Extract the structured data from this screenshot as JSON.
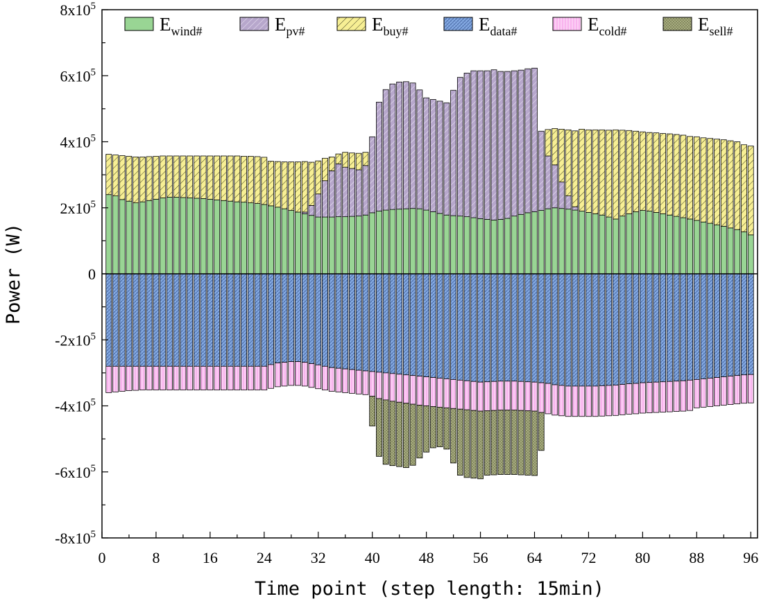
{
  "chart_data": {
    "type": "bar",
    "stacked": true,
    "xlabel": "Time point (step length: 15min)",
    "ylabel": "Power (W)",
    "xlim": [
      0,
      97
    ],
    "ylim": [
      -800000,
      800000
    ],
    "x_ticks": [
      {
        "value": 0,
        "label": "0"
      },
      {
        "value": 8,
        "label": "8"
      },
      {
        "value": 16,
        "label": "16"
      },
      {
        "value": 24,
        "label": "24"
      },
      {
        "value": 32,
        "label": "32"
      },
      {
        "value": 40,
        "label": "40"
      },
      {
        "value": 48,
        "label": "48"
      },
      {
        "value": 56,
        "label": "56"
      },
      {
        "value": 64,
        "label": "64"
      },
      {
        "value": 72,
        "label": "72"
      },
      {
        "value": 80,
        "label": "80"
      },
      {
        "value": 88,
        "label": "88"
      },
      {
        "value": 96,
        "label": "96"
      }
    ],
    "y_ticks": [
      {
        "value": 800000,
        "base": "8x10",
        "exp": "5"
      },
      {
        "value": 600000,
        "base": "6x10",
        "exp": "5"
      },
      {
        "value": 400000,
        "base": "4x10",
        "exp": "5"
      },
      {
        "value": 200000,
        "base": "2x10",
        "exp": "5"
      },
      {
        "value": 0,
        "base": "0",
        "exp": ""
      },
      {
        "value": -200000,
        "base": "-2x10",
        "exp": "5"
      },
      {
        "value": -400000,
        "base": "-4x10",
        "exp": "5"
      },
      {
        "value": -600000,
        "base": "-6x10",
        "exp": "5"
      },
      {
        "value": -800000,
        "base": "-8x10",
        "exp": "5"
      }
    ],
    "legend": {
      "position": "top",
      "entries": [
        {
          "key": "wind",
          "base": "E",
          "sub": "wind#"
        },
        {
          "key": "pv",
          "base": "E",
          "sub": "pv#"
        },
        {
          "key": "buy",
          "base": "E",
          "sub": "buy#"
        },
        {
          "key": "data",
          "base": "E",
          "sub": "data#"
        },
        {
          "key": "cold",
          "base": "E",
          "sub": "cold#"
        },
        {
          "key": "sell",
          "base": "E",
          "sub": "sell#"
        }
      ]
    },
    "colors": {
      "wind": "#99d594",
      "pv": "#b7a7cc",
      "buy": "#f7ef94",
      "data": "#88aee6",
      "cold": "#f9b3ee",
      "sell": "#a8ad80"
    },
    "x": [
      1,
      2,
      3,
      4,
      5,
      6,
      7,
      8,
      9,
      10,
      11,
      12,
      13,
      14,
      15,
      16,
      17,
      18,
      19,
      20,
      21,
      22,
      23,
      24,
      25,
      26,
      27,
      28,
      29,
      30,
      31,
      32,
      33,
      34,
      35,
      36,
      37,
      38,
      39,
      40,
      41,
      42,
      43,
      44,
      45,
      46,
      47,
      48,
      49,
      50,
      51,
      52,
      53,
      54,
      55,
      56,
      57,
      58,
      59,
      60,
      61,
      62,
      63,
      64,
      65,
      66,
      67,
      68,
      69,
      70,
      71,
      72,
      73,
      74,
      75,
      76,
      77,
      78,
      79,
      80,
      81,
      82,
      83,
      84,
      85,
      86,
      87,
      88,
      89,
      90,
      91,
      92,
      93,
      94,
      95,
      96
    ],
    "series": [
      {
        "name": "wind",
        "values": [
          240000,
          236000,
          225000,
          220000,
          215000,
          218000,
          222000,
          226000,
          230000,
          232000,
          232000,
          231000,
          230000,
          229000,
          228000,
          226000,
          224000,
          222000,
          220000,
          218000,
          217000,
          215000,
          213000,
          210000,
          206000,
          202000,
          197000,
          192000,
          187000,
          182000,
          177000,
          172000,
          172000,
          172000,
          173000,
          173000,
          174000,
          175000,
          178000,
          185000,
          190000,
          193000,
          195000,
          196000,
          197000,
          198000,
          197000,
          193000,
          188000,
          183000,
          178000,
          176000,
          175000,
          173000,
          170000,
          167000,
          165000,
          163000,
          165000,
          168000,
          175000,
          180000,
          185000,
          188000,
          192000,
          197000,
          200000,
          198000,
          196000,
          193000,
          190000,
          186000,
          182000,
          178000,
          172000,
          166000,
          175000,
          182000,
          188000,
          192000,
          190000,
          186000,
          182000,
          178000,
          174000,
          170000,
          166000,
          162000,
          157000,
          153000,
          148000,
          144000,
          139000,
          134000,
          127000,
          118000
        ]
      },
      {
        "name": "pv",
        "values": [
          0,
          0,
          0,
          0,
          0,
          0,
          0,
          0,
          0,
          0,
          0,
          0,
          0,
          0,
          0,
          0,
          0,
          0,
          0,
          0,
          0,
          0,
          0,
          0,
          0,
          0,
          0,
          0,
          0,
          5000,
          30000,
          70000,
          110000,
          140000,
          160000,
          150000,
          145000,
          140000,
          150000,
          230000,
          330000,
          365000,
          380000,
          385000,
          385000,
          380000,
          360000,
          340000,
          340000,
          340000,
          340000,
          380000,
          420000,
          435000,
          445000,
          448000,
          450000,
          455000,
          448000,
          445000,
          440000,
          437000,
          436000,
          435000,
          240000,
          160000,
          130000,
          80000,
          40000,
          10000,
          0,
          0,
          0,
          0,
          0,
          0,
          0,
          0,
          0,
          0,
          0,
          0,
          0,
          0,
          0,
          0,
          0,
          0,
          0,
          0,
          0,
          0,
          0,
          0,
          0,
          0
        ]
      },
      {
        "name": "buy",
        "values": [
          122000,
          124000,
          133000,
          136000,
          139000,
          136000,
          133000,
          130000,
          127000,
          125000,
          125000,
          126000,
          127000,
          128000,
          129000,
          131000,
          133000,
          135000,
          137000,
          139000,
          139000,
          141000,
          142000,
          143000,
          135000,
          138000,
          142000,
          147000,
          152000,
          153000,
          131000,
          100000,
          68000,
          42000,
          30000,
          45000,
          47000,
          50000,
          40000,
          0,
          0,
          0,
          0,
          0,
          0,
          0,
          0,
          0,
          0,
          0,
          0,
          0,
          0,
          0,
          0,
          0,
          0,
          0,
          0,
          0,
          0,
          0,
          0,
          0,
          0,
          80000,
          110000,
          160000,
          200000,
          230000,
          248000,
          250000,
          254000,
          258000,
          263000,
          270000,
          260000,
          252000,
          244000,
          238000,
          238000,
          241000,
          243000,
          246000,
          248000,
          250000,
          250000,
          253000,
          255000,
          257000,
          260000,
          262000,
          264000,
          266000,
          264000,
          269000
        ]
      },
      {
        "name": "data",
        "values": [
          -280000,
          -280000,
          -280000,
          -280000,
          -280000,
          -280000,
          -280000,
          -280000,
          -280000,
          -280000,
          -280000,
          -280000,
          -280000,
          -280000,
          -280000,
          -280000,
          -280000,
          -280000,
          -280000,
          -280000,
          -280000,
          -280000,
          -280000,
          -280000,
          -275000,
          -270000,
          -268000,
          -266000,
          -266000,
          -268000,
          -272000,
          -276000,
          -280000,
          -284000,
          -286000,
          -288000,
          -290000,
          -292000,
          -294000,
          -296000,
          -298000,
          -300000,
          -302000,
          -304000,
          -306000,
          -308000,
          -310000,
          -312000,
          -314000,
          -316000,
          -318000,
          -320000,
          -322000,
          -324000,
          -326000,
          -328000,
          -327000,
          -326000,
          -325000,
          -325000,
          -325000,
          -326000,
          -327000,
          -328000,
          -330000,
          -332000,
          -336000,
          -338000,
          -340000,
          -340000,
          -340000,
          -340000,
          -340000,
          -339000,
          -338000,
          -337000,
          -335000,
          -333000,
          -332000,
          -330000,
          -329000,
          -328000,
          -327000,
          -326000,
          -325000,
          -324000,
          -322000,
          -320000,
          -318000,
          -316000,
          -314000,
          -312000,
          -310000,
          -308000,
          -306000,
          -305000
        ]
      },
      {
        "name": "cold",
        "values": [
          -80000,
          -78000,
          -76000,
          -74000,
          -73000,
          -72000,
          -72000,
          -72000,
          -72000,
          -72000,
          -72000,
          -72000,
          -72000,
          -72000,
          -72000,
          -72000,
          -72000,
          -72000,
          -72000,
          -72000,
          -72000,
          -72000,
          -72000,
          -72000,
          -72000,
          -72000,
          -72000,
          -72000,
          -72000,
          -72000,
          -72000,
          -72000,
          -72000,
          -72000,
          -72000,
          -72000,
          -72000,
          -72000,
          -72000,
          -75000,
          -80000,
          -82000,
          -84000,
          -85000,
          -86000,
          -87000,
          -88000,
          -88000,
          -88000,
          -88000,
          -88000,
          -88000,
          -88000,
          -88000,
          -88000,
          -88000,
          -88000,
          -88000,
          -88000,
          -88000,
          -88000,
          -88000,
          -88000,
          -88000,
          -90000,
          -92000,
          -92000,
          -92000,
          -92000,
          -92000,
          -92000,
          -92000,
          -92000,
          -92000,
          -92000,
          -92000,
          -92000,
          -92000,
          -92000,
          -92000,
          -92000,
          -92000,
          -92000,
          -92000,
          -92000,
          -92000,
          -92000,
          -86000,
          -86000,
          -86000,
          -86000,
          -86000,
          -86000,
          -86000,
          -86000,
          -86000
        ]
      },
      {
        "name": "sell",
        "values": [
          0,
          0,
          0,
          0,
          0,
          0,
          0,
          0,
          0,
          0,
          0,
          0,
          0,
          0,
          0,
          0,
          0,
          0,
          0,
          0,
          0,
          0,
          0,
          0,
          0,
          0,
          0,
          0,
          0,
          0,
          0,
          0,
          0,
          0,
          0,
          0,
          0,
          0,
          0,
          -90000,
          -175000,
          -195000,
          -195000,
          -195000,
          -195000,
          -185000,
          -160000,
          -140000,
          -125000,
          -120000,
          -125000,
          -165000,
          -200000,
          -205000,
          -205000,
          -205000,
          -195000,
          -195000,
          -195000,
          -195000,
          -195000,
          -195000,
          -195000,
          -195000,
          -115000,
          0,
          0,
          0,
          0,
          0,
          0,
          0,
          0,
          0,
          0,
          0,
          0,
          0,
          0,
          0,
          0,
          0,
          0,
          0,
          0,
          0,
          0,
          0,
          0,
          0,
          0,
          0,
          0,
          0,
          0,
          0
        ]
      }
    ]
  }
}
